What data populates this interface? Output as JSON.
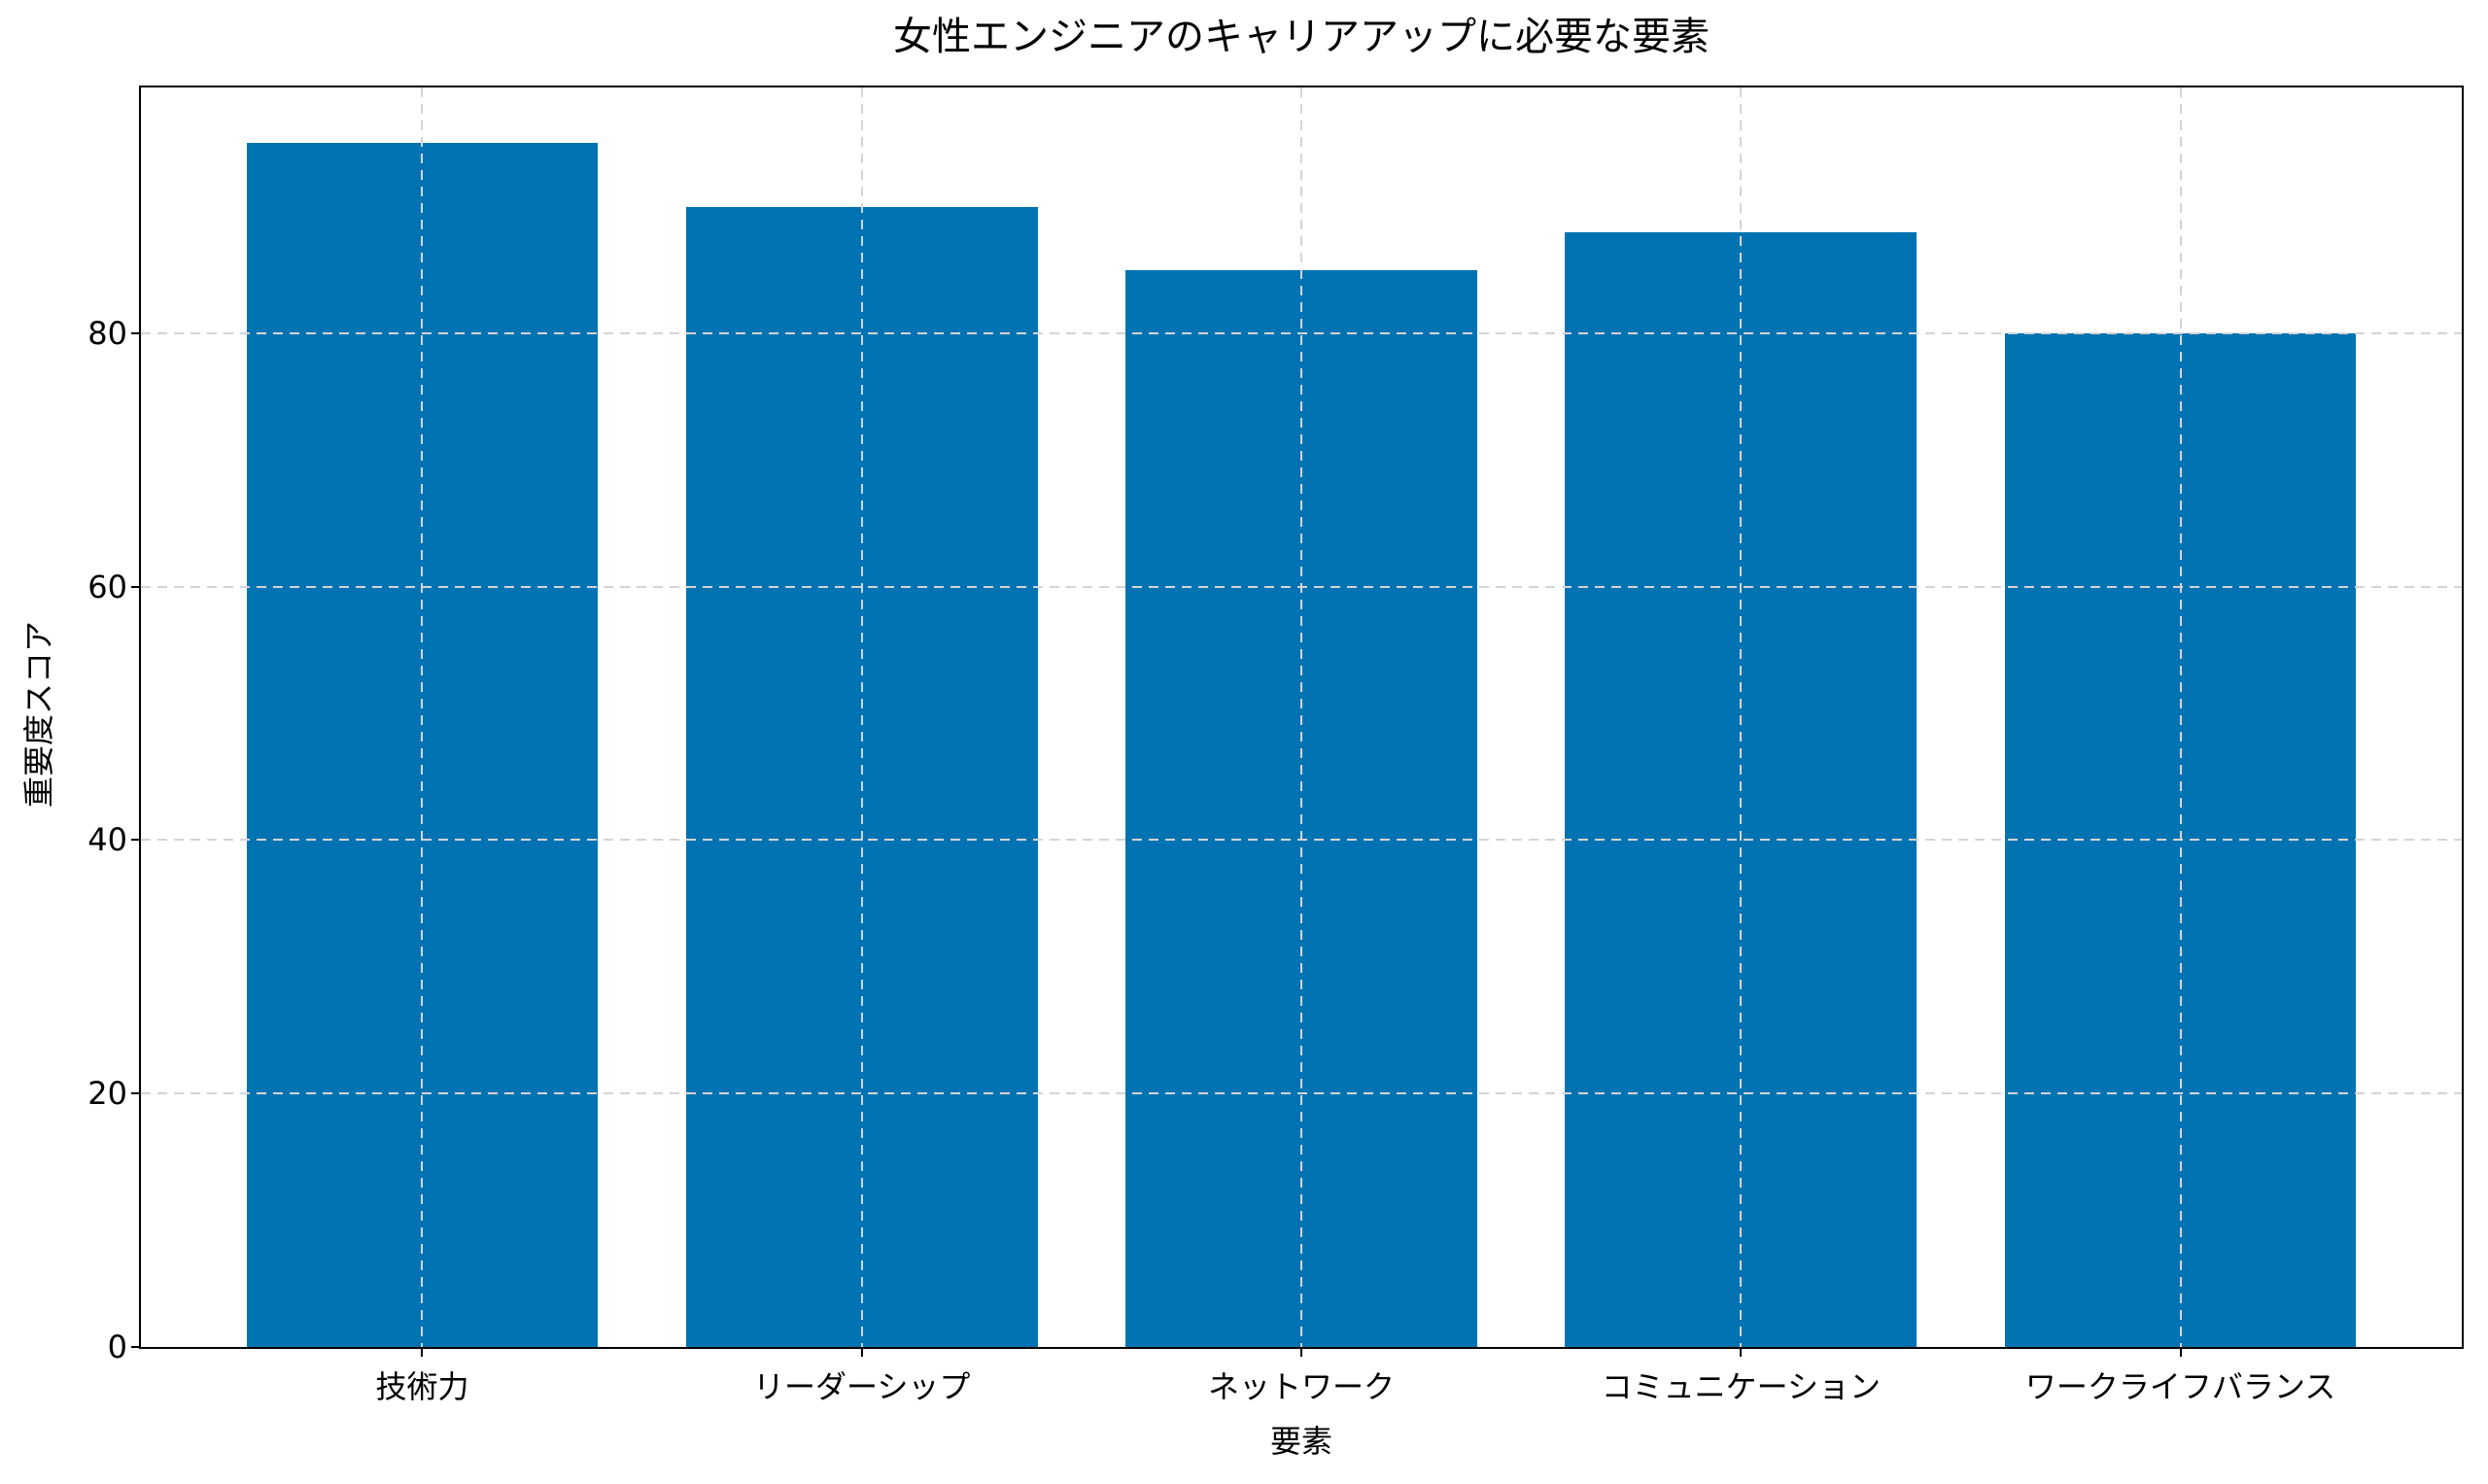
{
  "chart_data": {
    "type": "bar",
    "title": "女性エンジニアのキャリアアップに必要な要素",
    "xlabel": "要素",
    "ylabel": "重要度スコア",
    "categories": [
      "技術力",
      "リーダーシップ",
      "ネットワーク",
      "コミュニケーション",
      "ワークライフバランス"
    ],
    "values": [
      95,
      90,
      85,
      88,
      80
    ],
    "yticks": [
      0,
      20,
      40,
      60,
      80
    ],
    "ylim": [
      0,
      99.4
    ],
    "xlim": [
      -0.64,
      4.64
    ],
    "bar_width": 0.8,
    "bar_color": "#0173b2",
    "grid": "dashed, both axes, drawn over bars",
    "grid_color": "#d4d4d4",
    "spine_color": "#000000",
    "background": "#ffffff",
    "legend": "none"
  }
}
